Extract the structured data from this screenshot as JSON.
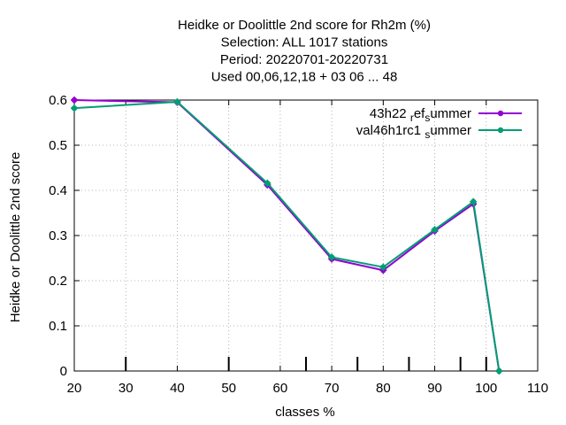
{
  "chart_data": {
    "type": "line",
    "title_lines": [
      "Heidke or Doolittle 2nd score  for Rh2m (%)",
      "Selection: ALL   1017 stations",
      "Period: 20220701-20220731",
      "Used  00,06,12,18  + 03 06 ... 48"
    ],
    "xlabel": "classes %",
    "ylabel": "Heidke or Doolittle 2nd score",
    "xlim": [
      20,
      110
    ],
    "ylim": [
      0,
      0.6
    ],
    "xticks": [
      20,
      30,
      40,
      50,
      60,
      70,
      80,
      90,
      100,
      110
    ],
    "yticks": [
      0,
      0.1,
      0.2,
      0.3,
      0.4,
      0.5,
      0.6
    ],
    "class_markers": [
      30,
      50,
      65,
      75,
      85,
      95,
      100
    ],
    "legend_position": "top-right",
    "grid": true,
    "series": [
      {
        "name": "43h22 ref summer",
        "name_parts": [
          "43h22 ",
          "r",
          "ef",
          "s",
          "ummer"
        ],
        "color": "#9400d3",
        "x": [
          20,
          40,
          57.5,
          70,
          80,
          90,
          97.5,
          102.5
        ],
        "y": [
          0.6,
          0.595,
          0.412,
          0.248,
          0.223,
          0.31,
          0.37,
          0.0
        ]
      },
      {
        "name": "val46h1rc1 summer",
        "name_parts": [
          "val46h1rc1 ",
          "",
          "",
          "s",
          "ummer"
        ],
        "color": "#009e73",
        "x": [
          20,
          40,
          57.5,
          70,
          80,
          90,
          97.5,
          102.5
        ],
        "y": [
          0.582,
          0.596,
          0.416,
          0.252,
          0.23,
          0.313,
          0.375,
          0.0
        ]
      }
    ]
  }
}
